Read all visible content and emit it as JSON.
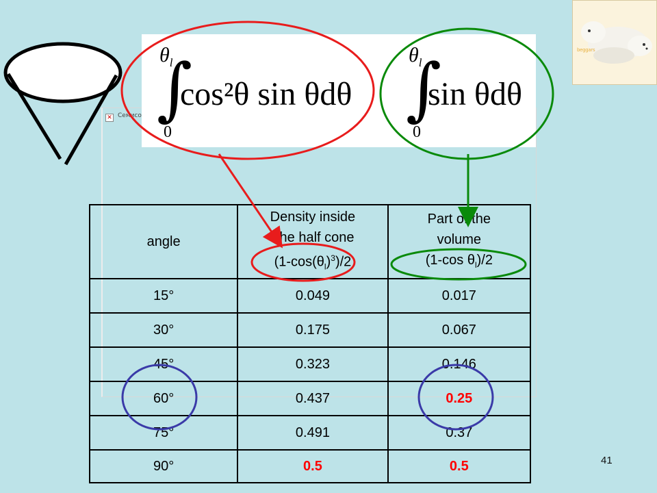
{
  "ole_object": {
    "label": "Cемисо"
  },
  "formulas": {
    "left": {
      "upper": "θ",
      "upper_sub": "l",
      "lower": "0",
      "integrand": "cos²θ sin θdθ"
    },
    "right": {
      "upper": "θ",
      "upper_sub": "l",
      "lower": "0",
      "integrand": "sin θdθ"
    }
  },
  "table": {
    "headers": {
      "angle": "angle",
      "density_line1": "Density inside",
      "density_line2": "The half cone",
      "density_formula_a": "(1-cos(",
      "density_formula_theta": "θ",
      "density_formula_sub": "l",
      "density_formula_b": ")",
      "density_formula_sup": "3",
      "density_formula_c": ")/2",
      "volume_line1": "Part of the",
      "volume_line2": "volume",
      "volume_formula_a": "(1-cos ",
      "volume_formula_theta": "θ",
      "volume_formula_sub": "l",
      "volume_formula_b": ")/2"
    },
    "rows": [
      {
        "angle": "15°",
        "density": "0.049",
        "volume": "0.017"
      },
      {
        "angle": "30°",
        "density": "0.175",
        "volume": "0.067"
      },
      {
        "angle": "45°",
        "density": "0.323",
        "volume": "0.146"
      },
      {
        "angle": "60°",
        "density": "0.437",
        "volume": "0.25"
      },
      {
        "angle": "75°",
        "density": "0.491",
        "volume": "0.37"
      },
      {
        "angle": "90°",
        "density": "0.5",
        "volume": "0.5"
      }
    ],
    "highlight_color": "#ff0000"
  },
  "photo": {
    "caption": "beggars"
  },
  "page_number": "41",
  "colors": {
    "background": "#bde3e8",
    "red_annotation": "#e81c1c",
    "green_annotation": "#0a8a0a",
    "blue_annotation": "#3a3aa8"
  }
}
